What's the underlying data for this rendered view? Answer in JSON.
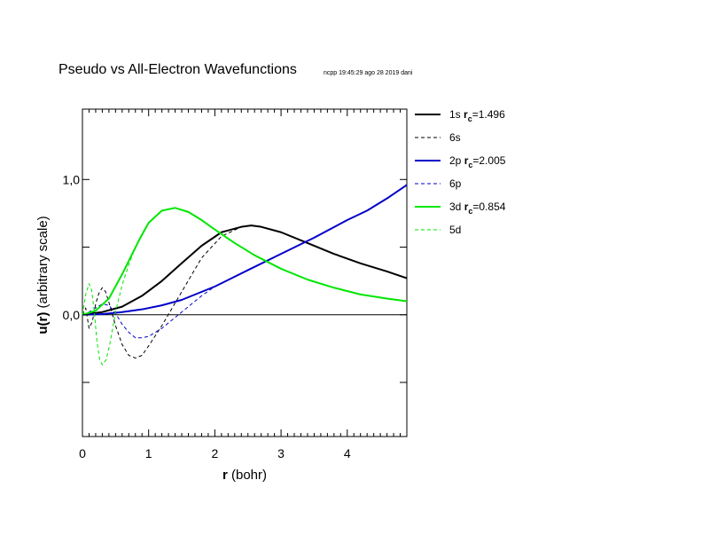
{
  "chart_data": {
    "type": "line",
    "title": "Pseudo vs All-Electron Wavefunctions",
    "subtitle": "ncpp 19:45:29 ago 28 2019 dani",
    "xlabel": {
      "bold": "r",
      "rest": " (bohr)"
    },
    "ylabel": {
      "bold": "u(r)",
      "rest": "  (arbitrary scale)"
    },
    "xlim": [
      0,
      4.9
    ],
    "ylim": [
      -0.9,
      1.52
    ],
    "x_ticks": [
      0,
      1,
      2,
      3,
      4
    ],
    "x_tick_labels": [
      "0",
      "1",
      "2",
      "3",
      "4"
    ],
    "y_ticks": [
      0.0,
      1.0
    ],
    "y_tick_labels": [
      "0,0",
      "1,0"
    ],
    "y_ticks_unlabeled": [
      -0.5,
      0.5
    ],
    "zero_line": true,
    "grid": false,
    "legend_position": "right-top",
    "series": [
      {
        "name": "1s",
        "rc_label": "r",
        "rc_sub": "c",
        "rc_value": "=1.496",
        "color": "#000000",
        "dash": "solid",
        "width": 2,
        "x": [
          0.0,
          0.3,
          0.6,
          0.9,
          1.2,
          1.496,
          1.8,
          2.1,
          2.4,
          2.55,
          2.7,
          3.0,
          3.4,
          3.8,
          4.2,
          4.6,
          4.9
        ],
        "y": [
          0.0,
          0.02,
          0.06,
          0.14,
          0.25,
          0.38,
          0.51,
          0.61,
          0.65,
          0.66,
          0.65,
          0.61,
          0.53,
          0.45,
          0.38,
          0.32,
          0.27
        ]
      },
      {
        "name": "6s",
        "color": "#000000",
        "dash": "dashed",
        "width": 1,
        "x": [
          0.0,
          0.05,
          0.1,
          0.15,
          0.2,
          0.25,
          0.3,
          0.35,
          0.42,
          0.5,
          0.6,
          0.7,
          0.8,
          0.9,
          1.0,
          1.2,
          1.5,
          1.8,
          2.1,
          2.4,
          2.55,
          2.7,
          3.0,
          3.4,
          3.8,
          4.2,
          4.6,
          4.9
        ],
        "y": [
          0.0,
          0.05,
          -0.1,
          -0.05,
          0.08,
          0.16,
          0.2,
          0.17,
          0.06,
          -0.08,
          -0.22,
          -0.3,
          -0.32,
          -0.3,
          -0.23,
          -0.08,
          0.17,
          0.42,
          0.58,
          0.65,
          0.66,
          0.65,
          0.61,
          0.53,
          0.45,
          0.38,
          0.32,
          0.27
        ]
      },
      {
        "name": "2p",
        "rc_label": "r",
        "rc_sub": "c",
        "rc_value": "=2.005",
        "color": "#0000c8",
        "dash": "solid",
        "width": 2,
        "x": [
          0.0,
          0.3,
          0.6,
          0.9,
          1.2,
          1.5,
          2.005,
          2.5,
          3.0,
          3.5,
          4.0,
          4.3,
          4.6,
          4.9
        ],
        "y": [
          0.0,
          0.005,
          0.02,
          0.04,
          0.07,
          0.11,
          0.21,
          0.33,
          0.45,
          0.57,
          0.7,
          0.77,
          0.86,
          0.96
        ]
      },
      {
        "name": "6p",
        "color": "#0000c8",
        "dash": "dashed",
        "width": 1,
        "x": [
          0.0,
          0.1,
          0.2,
          0.3,
          0.4,
          0.5,
          0.6,
          0.7,
          0.8,
          0.9,
          1.0,
          1.2,
          1.5,
          1.8,
          2.005,
          2.5,
          3.0,
          3.5,
          4.0,
          4.3,
          4.6,
          4.9
        ],
        "y": [
          0.0,
          0.02,
          0.05,
          0.08,
          0.07,
          0.01,
          -0.07,
          -0.13,
          -0.17,
          -0.17,
          -0.16,
          -0.1,
          0.02,
          0.14,
          0.21,
          0.33,
          0.45,
          0.57,
          0.7,
          0.77,
          0.86,
          0.96
        ]
      },
      {
        "name": "3d",
        "rc_label": "r",
        "rc_sub": "c",
        "rc_value": "=0.854",
        "color": "#00e600",
        "dash": "solid",
        "width": 2,
        "x": [
          0.0,
          0.2,
          0.4,
          0.6,
          0.854,
          1.0,
          1.2,
          1.4,
          1.6,
          1.8,
          2.0,
          2.3,
          2.6,
          3.0,
          3.4,
          3.8,
          4.2,
          4.6,
          4.9
        ],
        "y": [
          0.0,
          0.03,
          0.12,
          0.3,
          0.55,
          0.68,
          0.77,
          0.79,
          0.76,
          0.7,
          0.63,
          0.53,
          0.44,
          0.34,
          0.26,
          0.2,
          0.15,
          0.12,
          0.1
        ]
      },
      {
        "name": "5d",
        "color": "#00e600",
        "dash": "dashed",
        "width": 1,
        "x": [
          0.0,
          0.05,
          0.1,
          0.14,
          0.18,
          0.22,
          0.26,
          0.3,
          0.36,
          0.42,
          0.5,
          0.6,
          0.7,
          0.8,
          0.9,
          1.0,
          1.2,
          1.4,
          1.6,
          1.8,
          2.0,
          2.3,
          2.6,
          3.0,
          3.4,
          3.8,
          4.2,
          4.6,
          4.9
        ],
        "y": [
          0.0,
          0.15,
          0.23,
          0.18,
          0.02,
          -0.2,
          -0.33,
          -0.37,
          -0.33,
          -0.2,
          0.02,
          0.22,
          0.37,
          0.5,
          0.6,
          0.68,
          0.77,
          0.79,
          0.76,
          0.7,
          0.63,
          0.53,
          0.44,
          0.34,
          0.26,
          0.2,
          0.15,
          0.12,
          0.1
        ]
      }
    ]
  }
}
